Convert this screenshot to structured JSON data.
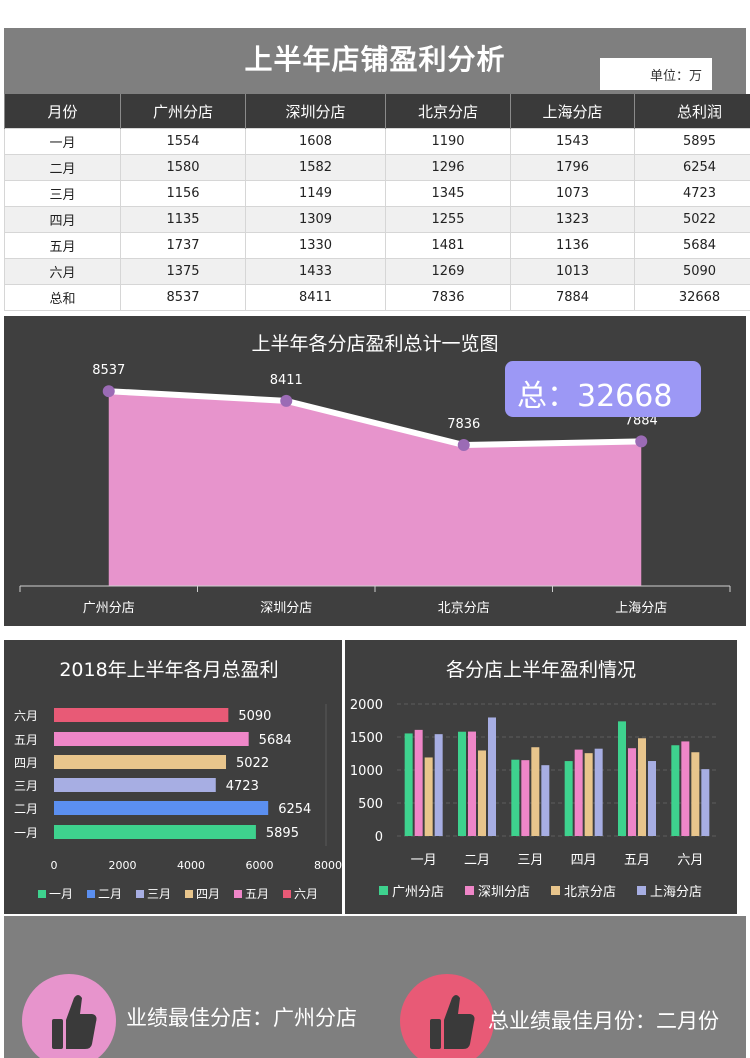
{
  "header": {
    "title": "上半年店铺盈利分析",
    "unit_label": "单位：万"
  },
  "table": {
    "columns": [
      "月份",
      "广州分店",
      "深圳分店",
      "北京分店",
      "上海分店",
      "总利润"
    ],
    "rows": [
      [
        "一月",
        "1554",
        "1608",
        "1190",
        "1543",
        "5895"
      ],
      [
        "二月",
        "1580",
        "1582",
        "1296",
        "1796",
        "6254"
      ],
      [
        "三月",
        "1156",
        "1149",
        "1345",
        "1073",
        "4723"
      ],
      [
        "四月",
        "1135",
        "1309",
        "1255",
        "1323",
        "5022"
      ],
      [
        "五月",
        "1737",
        "1330",
        "1481",
        "1136",
        "5684"
      ],
      [
        "六月",
        "1375",
        "1433",
        "1269",
        "1013",
        "5090"
      ],
      [
        "总和",
        "8537",
        "8411",
        "7836",
        "7884",
        "32668"
      ]
    ]
  },
  "chart_data": [
    {
      "type": "area",
      "title": "上半年各分店盈利总计一览图",
      "categories": [
        "广州分店",
        "深圳分店",
        "北京分店",
        "上海分店"
      ],
      "values": [
        8537,
        8411,
        7836,
        7884
      ],
      "total_label": "总：32668",
      "ylim": [
        6000,
        8800
      ],
      "colors": {
        "fill": "#e794cc",
        "line": "#ffffff",
        "marker": "#9b6bb5"
      }
    },
    {
      "type": "bar",
      "orientation": "horizontal",
      "title": "2018年上半年各月总盈利",
      "categories": [
        "一月",
        "二月",
        "三月",
        "四月",
        "五月",
        "六月"
      ],
      "values": [
        5895,
        6254,
        4723,
        5022,
        5684,
        5090
      ],
      "colors": [
        "#3ed28e",
        "#5b8ff0",
        "#a7aee3",
        "#e8c58c",
        "#ef86c8",
        "#e85a76"
      ],
      "xlim": [
        0,
        8000
      ],
      "xticks": [
        "0",
        "2000",
        "4000",
        "6000",
        "8000"
      ]
    },
    {
      "type": "bar",
      "title": "各分店上半年盈利情况",
      "categories": [
        "一月",
        "二月",
        "三月",
        "四月",
        "五月",
        "六月"
      ],
      "series": [
        {
          "name": "广州分店",
          "values": [
            1554,
            1580,
            1156,
            1135,
            1737,
            1375
          ],
          "color": "#3ed28e"
        },
        {
          "name": "深圳分店",
          "values": [
            1608,
            1582,
            1149,
            1309,
            1330,
            1433
          ],
          "color": "#ef86c8"
        },
        {
          "name": "北京分店",
          "values": [
            1190,
            1296,
            1345,
            1255,
            1481,
            1269
          ],
          "color": "#e8c58c"
        },
        {
          "name": "上海分店",
          "values": [
            1543,
            1796,
            1073,
            1323,
            1136,
            1013
          ],
          "color": "#a7aee3"
        }
      ],
      "ylim": [
        0,
        2000
      ],
      "yticks": [
        "0",
        "500",
        "1000",
        "1500",
        "2000"
      ]
    }
  ],
  "footer": {
    "best_store": "业绩最佳分店：广州分店",
    "best_month": "总业绩最佳月份：二月份"
  },
  "colors": {
    "dark_panel": "#3f3f3f",
    "header_gray": "#7f7f7f",
    "badge_pink": "#e794cc",
    "badge_red": "#e85a76",
    "total_box": "#9c98f5"
  }
}
